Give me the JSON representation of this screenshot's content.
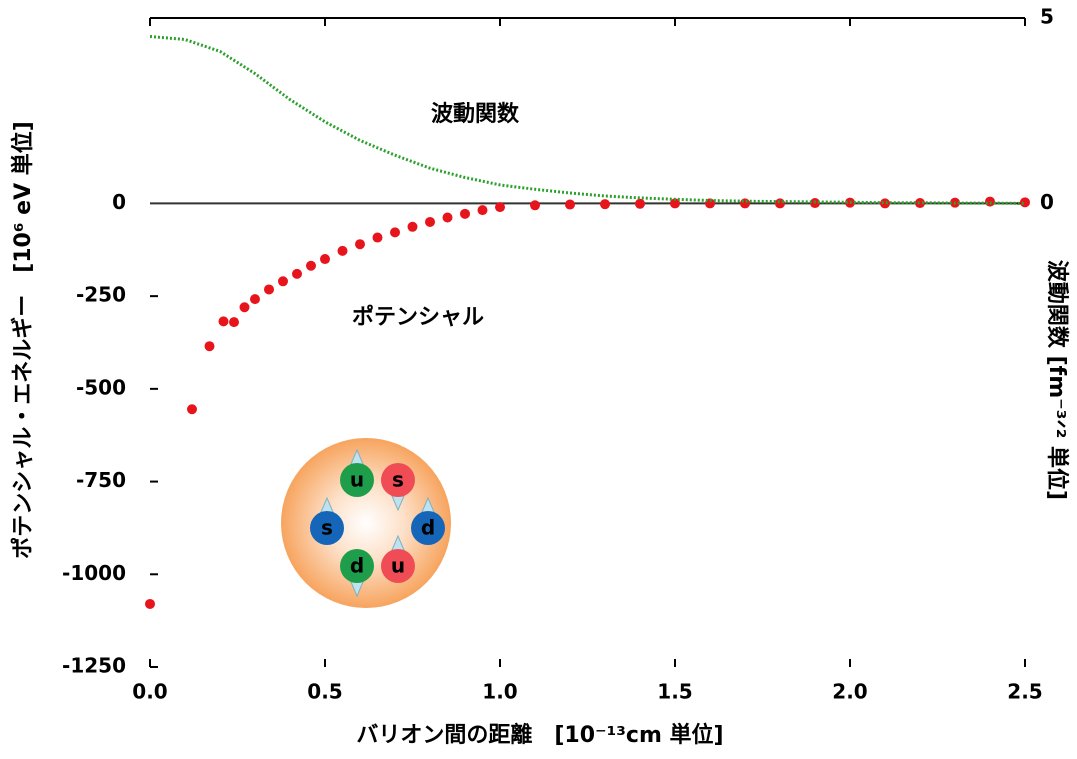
{
  "chart_data": {
    "type": "scatter",
    "xlabel": "バリオン間の距離　[10⁻¹³cm 単位]",
    "ylabel": "ポテンシャル・エネルギー　[10⁶ eV 単位]",
    "y2label": "波動関数 [fm⁻³ᐟ² 単位]",
    "xlim": [
      0,
      2.5
    ],
    "xticks": [
      {
        "value": 0,
        "label": "0.0"
      },
      {
        "value": 0.5,
        "label": "0.5"
      },
      {
        "value": 1,
        "label": "1.0"
      },
      {
        "value": 1.5,
        "label": "1.5"
      },
      {
        "value": 2,
        "label": "2.0"
      },
      {
        "value": 2.5,
        "label": "2.5"
      }
    ],
    "ylim": [
      -1250,
      500
    ],
    "yticks": [
      -1250,
      -1000,
      -750,
      -500,
      -250,
      0
    ],
    "y2lim": [
      -12.5,
      5
    ],
    "y2ticks": [
      0,
      5
    ],
    "series": [
      {
        "name": "ポテンシャル",
        "color": "#e8141c",
        "style": "points",
        "x": [
          0,
          0.12,
          0.17,
          0.21,
          0.24,
          0.27,
          0.3,
          0.34,
          0.38,
          0.42,
          0.46,
          0.5,
          0.55,
          0.6,
          0.65,
          0.7,
          0.75,
          0.8,
          0.85,
          0.9,
          0.95,
          1.0,
          1.1,
          1.2,
          1.3,
          1.4,
          1.5,
          1.6,
          1.7,
          1.8,
          1.9,
          2.0,
          2.1,
          2.2,
          2.3,
          2.4,
          2.5
        ],
        "values": [
          -1080,
          -555,
          -385,
          -318,
          -320,
          -280,
          -258,
          -232,
          -210,
          -190,
          -168,
          -150,
          -128,
          -110,
          -92,
          -78,
          -63,
          -50,
          -38,
          -28,
          -18,
          -10,
          -5,
          -3,
          -2,
          -1,
          0,
          0,
          0,
          0,
          1,
          2,
          0,
          1,
          2,
          5,
          3
        ]
      },
      {
        "name": "波動関数",
        "color": "#2ca02c",
        "style": "dotted-line",
        "axis": "y2",
        "x": [
          0,
          0.1,
          0.2,
          0.3,
          0.4,
          0.5,
          0.6,
          0.7,
          0.8,
          0.9,
          1.0,
          1.1,
          1.2,
          1.3,
          1.4,
          1.5,
          1.6,
          1.7,
          1.8,
          1.9,
          2.0,
          2.1,
          2.2,
          2.3,
          2.4,
          2.5
        ],
        "values": [
          4.5,
          4.42,
          4.1,
          3.5,
          2.8,
          2.2,
          1.7,
          1.3,
          0.95,
          0.7,
          0.5,
          0.38,
          0.28,
          0.2,
          0.15,
          0.11,
          0.08,
          0.06,
          0.05,
          0.04,
          0.03,
          0.02,
          0.02,
          0.01,
          0.01,
          0
        ]
      }
    ],
    "inset_labels": [
      "u",
      "s",
      "s",
      "d",
      "d",
      "u"
    ]
  }
}
